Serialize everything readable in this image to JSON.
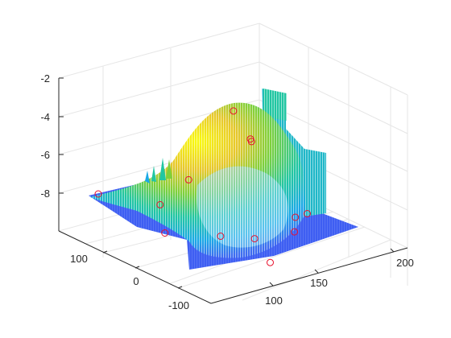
{
  "chart_data": {
    "type": "surface",
    "view": "3d",
    "title": "",
    "xlabel": "",
    "ylabel": "",
    "zlabel": "",
    "grid": true,
    "xlim": [
      60,
      230
    ],
    "ylim": [
      -130,
      150
    ],
    "zlim": [
      -10,
      -2
    ],
    "x_ticks": [
      100,
      150,
      200
    ],
    "y_ticks": [
      -100,
      0,
      100
    ],
    "z_ticks": [
      -8,
      -6,
      -4,
      -2
    ],
    "colormap": [
      "#3e26a8",
      "#2f6bff",
      "#1aa9e6",
      "#21c6a2",
      "#7fd03a",
      "#e7c72b",
      "#f9fb0e"
    ],
    "series": [
      {
        "type": "mesh",
        "description": "peak near x=150, y=0, z=-3.3"
      },
      {
        "type": "markers",
        "marker": "o",
        "color": "#e8112d",
        "points": [
          {
            "x": 80,
            "y": 120,
            "z": -8.0
          },
          {
            "x": 110,
            "y": 70,
            "z": -8.4
          },
          {
            "x": 130,
            "y": 60,
            "z": -7.3
          },
          {
            "x": 150,
            "y": 20,
            "z": -3.5
          },
          {
            "x": 160,
            "y": 10,
            "z": -5.0
          },
          {
            "x": 175,
            "y": 40,
            "z": -5.8
          },
          {
            "x": 120,
            "y": -20,
            "z": -9.0
          },
          {
            "x": 140,
            "y": -40,
            "z": -9.2
          },
          {
            "x": 165,
            "y": -60,
            "z": -9.0
          },
          {
            "x": 180,
            "y": -30,
            "z": -8.9
          },
          {
            "x": 195,
            "y": -20,
            "z": -9.1
          },
          {
            "x": 130,
            "y": -90,
            "z": -9.6
          },
          {
            "x": 100,
            "y": 40,
            "z": -9.3
          }
        ]
      }
    ]
  }
}
